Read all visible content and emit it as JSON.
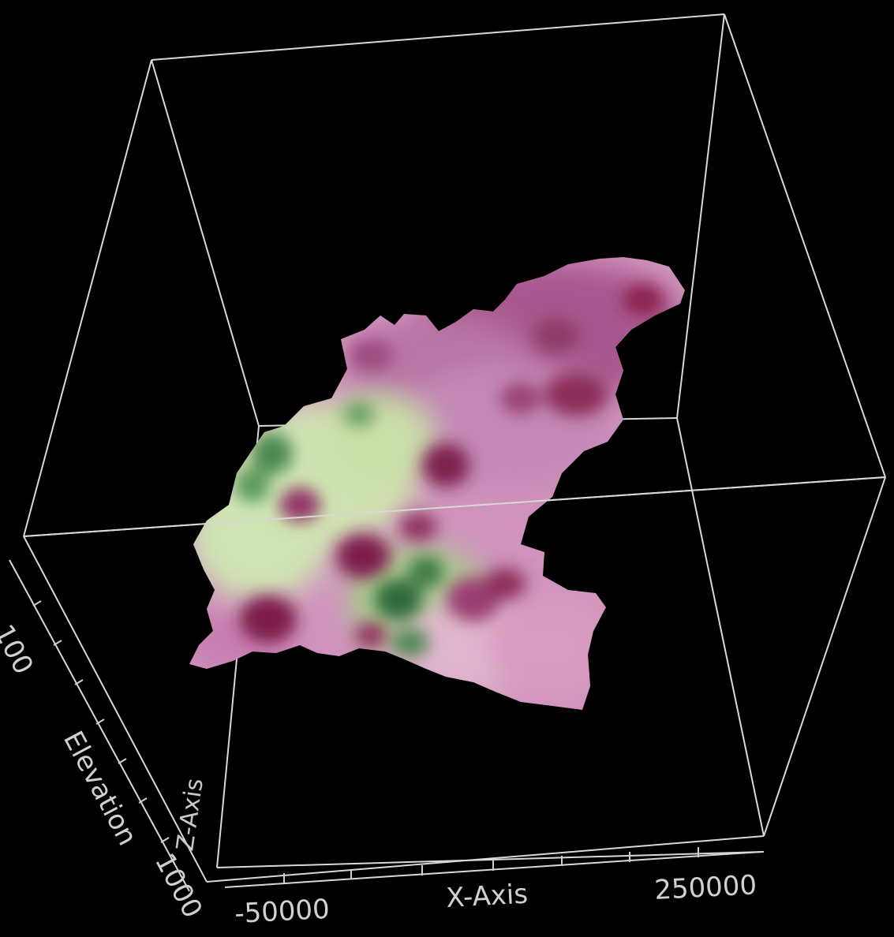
{
  "plot": {
    "x_axis": {
      "title": "X-Axis",
      "tick_labels": [
        "-50000",
        "250000"
      ]
    },
    "y_axis": {
      "title": "Elevation",
      "tick_labels": [
        "100",
        "1000"
      ]
    },
    "z_axis": {
      "title": "Z-Axis"
    }
  },
  "surface": {
    "colormap": [
      "#3f7a45",
      "#b8d59a",
      "#d9a3c8",
      "#b86aa8",
      "#7a1e45"
    ]
  }
}
